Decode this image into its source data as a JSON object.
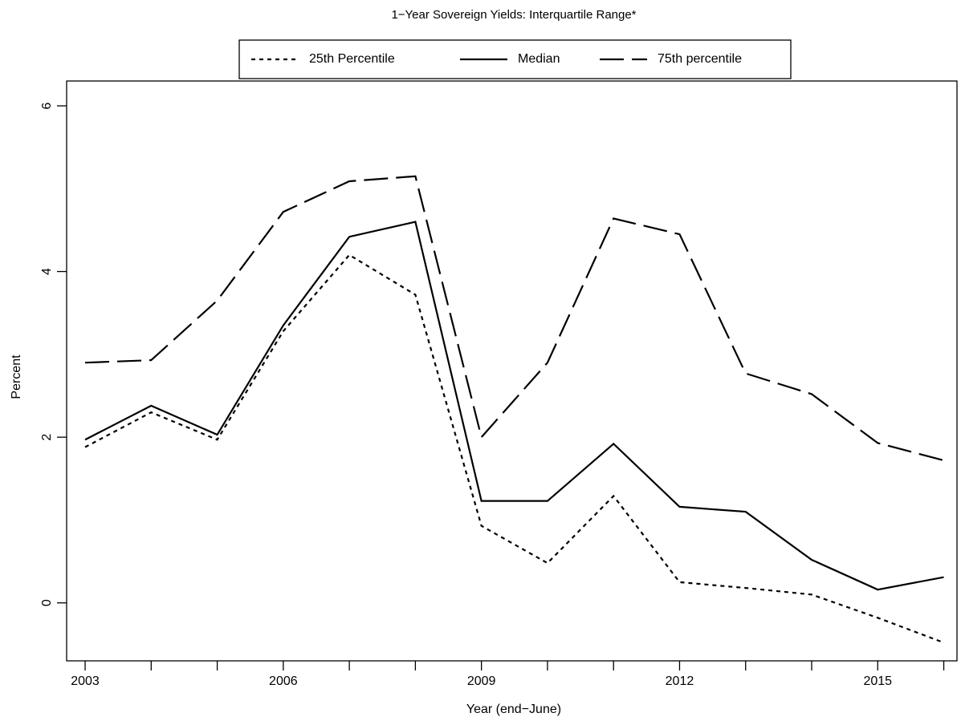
{
  "chart_data": {
    "type": "line",
    "title": "1−Year Sovereign Yields:  Interquartile Range*",
    "x_label": "Year (end−June)",
    "y_label": "Percent",
    "x": [
      2003,
      2004,
      2005,
      2006,
      2007,
      2008,
      2009,
      2010,
      2011,
      2012,
      2013,
      2014,
      2015,
      2016
    ],
    "series": [
      {
        "name": "25th Percentile",
        "color": "#000000",
        "dash": "dotted",
        "values": [
          1.88,
          2.3,
          1.97,
          3.28,
          4.2,
          3.72,
          0.93,
          0.48,
          1.29,
          0.25,
          0.18,
          0.1,
          -0.18,
          -0.48
        ]
      },
      {
        "name": "Median",
        "color": "#000000",
        "dash": "solid",
        "values": [
          1.97,
          2.38,
          2.03,
          3.35,
          4.42,
          4.6,
          1.23,
          1.23,
          1.92,
          1.16,
          1.1,
          0.52,
          0.16,
          0.31
        ]
      },
      {
        "name": "75th percentile",
        "color": "#000000",
        "dash": "longdash",
        "values": [
          2.9,
          2.93,
          3.65,
          4.72,
          5.09,
          5.15,
          2.0,
          2.9,
          4.64,
          4.45,
          2.77,
          2.52,
          1.93,
          1.72
        ]
      }
    ],
    "xlim": [
      2002.72,
      2016.2
    ],
    "xticks": [
      2003,
      2006,
      2009,
      2012,
      2015
    ],
    "xminorticks": [
      2004,
      2005,
      2007,
      2008,
      2010,
      2011,
      2013,
      2014,
      2016
    ],
    "ylim": [
      -0.7,
      6.3
    ],
    "yticks": [
      0,
      2,
      4,
      6
    ],
    "legend": "top"
  }
}
